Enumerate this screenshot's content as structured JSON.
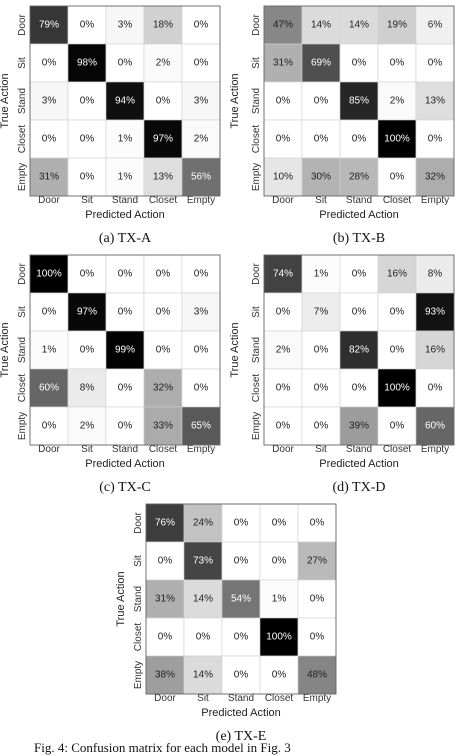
{
  "figure_caption": "Fig. 4: Confusion matrix for each model in Fig. 3",
  "chart_data": [
    {
      "type": "heatmap",
      "caption": "(a) TX-A",
      "xlabel": "Predicted Action",
      "ylabel": "True Action",
      "categories": [
        "Door",
        "Sit",
        "Stand",
        "Closet",
        "Empty"
      ],
      "values": [
        [
          79,
          0,
          3,
          18,
          0
        ],
        [
          0,
          98,
          0,
          2,
          0
        ],
        [
          3,
          0,
          94,
          0,
          3
        ],
        [
          0,
          0,
          1,
          97,
          2
        ],
        [
          31,
          0,
          1,
          13,
          56
        ]
      ],
      "unit": "%"
    },
    {
      "type": "heatmap",
      "caption": "(b) TX-B",
      "xlabel": "Predicted Action",
      "ylabel": "True Action",
      "categories": [
        "Door",
        "Sit",
        "Stand",
        "Closet",
        "Empty"
      ],
      "values": [
        [
          47,
          14,
          14,
          19,
          6
        ],
        [
          31,
          69,
          0,
          0,
          0
        ],
        [
          0,
          0,
          85,
          2,
          13
        ],
        [
          0,
          0,
          0,
          100,
          0
        ],
        [
          10,
          30,
          28,
          0,
          32
        ]
      ],
      "unit": "%"
    },
    {
      "type": "heatmap",
      "caption": "(c) TX-C",
      "xlabel": "Predicted Action",
      "ylabel": "True Action",
      "categories": [
        "Door",
        "Sit",
        "Stand",
        "Closet",
        "Empty"
      ],
      "values": [
        [
          100,
          0,
          0,
          0,
          0
        ],
        [
          0,
          97,
          0,
          0,
          3
        ],
        [
          1,
          0,
          99,
          0,
          0
        ],
        [
          60,
          8,
          0,
          32,
          0
        ],
        [
          0,
          2,
          0,
          33,
          65
        ]
      ],
      "unit": "%"
    },
    {
      "type": "heatmap",
      "caption": "(d) TX-D",
      "xlabel": "Predicted Action",
      "ylabel": "True Action",
      "categories": [
        "Door",
        "Sit",
        "Stand",
        "Closet",
        "Empty"
      ],
      "values": [
        [
          74,
          1,
          0,
          16,
          8
        ],
        [
          0,
          7,
          0,
          0,
          93
        ],
        [
          2,
          0,
          82,
          0,
          16
        ],
        [
          0,
          0,
          0,
          100,
          0
        ],
        [
          0,
          0,
          39,
          0,
          60
        ]
      ],
      "unit": "%"
    },
    {
      "type": "heatmap",
      "caption": "(e) TX-E",
      "xlabel": "Predicted Action",
      "ylabel": "True Action",
      "categories": [
        "Door",
        "Sit",
        "Stand",
        "Closet",
        "Empty"
      ],
      "values": [
        [
          76,
          24,
          0,
          0,
          0
        ],
        [
          0,
          73,
          0,
          0,
          27
        ],
        [
          31,
          14,
          54,
          1,
          0
        ],
        [
          0,
          0,
          0,
          100,
          0
        ],
        [
          38,
          14,
          0,
          0,
          48
        ]
      ],
      "unit": "%"
    }
  ]
}
